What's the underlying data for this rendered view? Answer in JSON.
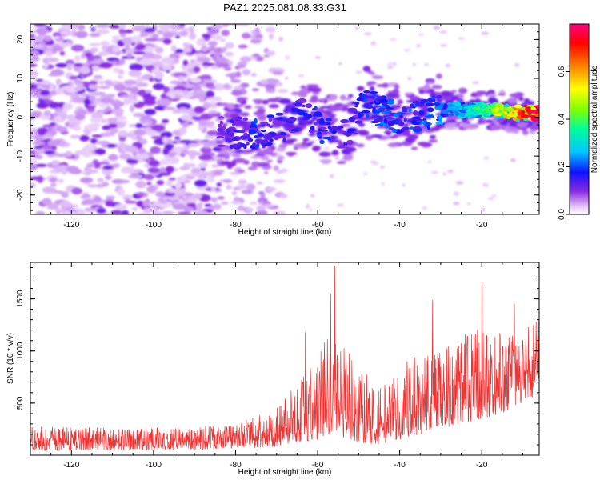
{
  "title": "PAZ1.2025.081.08.33.G31",
  "chart_data": [
    {
      "type": "heatmap",
      "xlabel": "Height of straight line (km)",
      "ylabel": "Frequency (Hz)",
      "xlim": [
        -130,
        -6
      ],
      "ylim": [
        -25,
        24
      ],
      "x_ticks": [
        -120,
        -100,
        -80,
        -60,
        -40,
        -20
      ],
      "y_ticks": [
        -20,
        -10,
        0,
        10,
        20
      ],
      "colorbar": {
        "label": "Normalized spectral amplitude",
        "range": [
          0,
          0.8
        ],
        "ticks": [
          "0.0",
          "0.2",
          "0.4",
          "0.6"
        ],
        "tick_values": [
          0,
          0.2,
          0.4,
          0.6
        ],
        "colors": [
          "#ffffff",
          "#e6c8fa",
          "#8a2be2",
          "#1010ff",
          "#00c8ff",
          "#00ff9a",
          "#80ff00",
          "#ffff00",
          "#ff8000",
          "#ff0000",
          "#ff0080"
        ]
      },
      "signal_track": [
        {
          "x": -83,
          "y": -4,
          "amp": 0.12
        },
        {
          "x": -75,
          "y": -4,
          "amp": 0.2
        },
        {
          "x": -68,
          "y": -2,
          "amp": 0.14
        },
        {
          "x": -64,
          "y": 1,
          "amp": 0.18
        },
        {
          "x": -58,
          "y": -3,
          "amp": 0.2
        },
        {
          "x": -53,
          "y": -4,
          "amp": 0.14
        },
        {
          "x": -48,
          "y": 4,
          "amp": 0.2
        },
        {
          "x": -44,
          "y": 1,
          "amp": 0.22
        },
        {
          "x": -38,
          "y": -1,
          "amp": 0.2
        },
        {
          "x": -30,
          "y": 2,
          "amp": 0.24
        },
        {
          "x": -24,
          "y": 2,
          "amp": 0.3
        },
        {
          "x": -18,
          "y": 2,
          "amp": 0.4
        },
        {
          "x": -13,
          "y": 1,
          "amp": 0.55
        },
        {
          "x": -7,
          "y": 1,
          "amp": 0.75
        }
      ]
    },
    {
      "type": "line",
      "xlabel": "Height of straight line (km)",
      "ylabel": "SNR (10 * v/v)",
      "xlim": [
        -130,
        -6
      ],
      "ylim": [
        0,
        1850
      ],
      "x_ticks": [
        -120,
        -100,
        -80,
        -60,
        -40,
        -20
      ],
      "y_ticks": [
        500,
        1000,
        1500
      ],
      "line_color": "#ee3333",
      "envelope": [
        {
          "x": -130,
          "low": 40,
          "high": 280
        },
        {
          "x": -100,
          "low": 50,
          "high": 260
        },
        {
          "x": -80,
          "low": 60,
          "high": 300
        },
        {
          "x": -70,
          "low": 80,
          "high": 450
        },
        {
          "x": -65,
          "low": 120,
          "high": 700
        },
        {
          "x": -60,
          "low": 150,
          "high": 1000
        },
        {
          "x": -56,
          "low": 200,
          "high": 1200
        },
        {
          "x": -50,
          "low": 120,
          "high": 900
        },
        {
          "x": -45,
          "low": 100,
          "high": 650
        },
        {
          "x": -40,
          "low": 150,
          "high": 800
        },
        {
          "x": -35,
          "low": 200,
          "high": 1100
        },
        {
          "x": -30,
          "low": 250,
          "high": 1000
        },
        {
          "x": -25,
          "low": 300,
          "high": 1150
        },
        {
          "x": -20,
          "low": 350,
          "high": 1250
        },
        {
          "x": -15,
          "low": 400,
          "high": 1200
        },
        {
          "x": -10,
          "low": 500,
          "high": 1250
        },
        {
          "x": -6,
          "low": 550,
          "high": 1300
        }
      ],
      "peaks": [
        {
          "x": -55.8,
          "y": 1820
        },
        {
          "x": -56.8,
          "y": 1550
        },
        {
          "x": -20,
          "y": 1660
        },
        {
          "x": -32,
          "y": 1490
        },
        {
          "x": -12,
          "y": 1450
        },
        {
          "x": -63,
          "y": 1180
        }
      ]
    }
  ]
}
